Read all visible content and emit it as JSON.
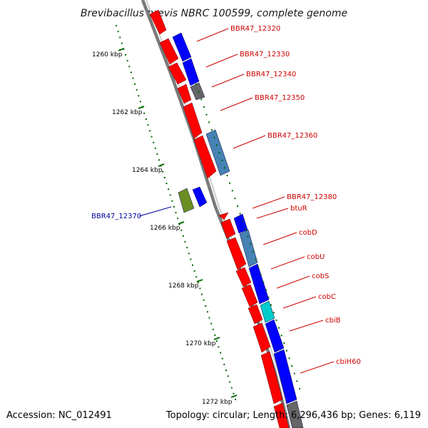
{
  "header": {
    "title": "Brevibacillus brevis NBRC 100599, complete genome"
  },
  "footer": {
    "accession": "Accession: NC_012491",
    "summary": "Topology: circular; Length: 6,296,436 bp; Genes: 6,119"
  },
  "ruler": {
    "ticks": [
      {
        "label": "1260 kbp"
      },
      {
        "label": "1262 kbp"
      },
      {
        "label": "1264 kbp"
      },
      {
        "label": "1266 kbp"
      },
      {
        "label": "1268 kbp"
      },
      {
        "label": "1270 kbp"
      },
      {
        "label": "1272 kbp"
      }
    ]
  },
  "gene_labels": [
    {
      "text": "BBR47_12320",
      "color": "#cc0000"
    },
    {
      "text": "BBR47_12330",
      "color": "#cc0000"
    },
    {
      "text": "BBR47_12340",
      "color": "#cc0000"
    },
    {
      "text": "BBR47_12350",
      "color": "#cc0000"
    },
    {
      "text": "BBR47_12360",
      "color": "#cc0000"
    },
    {
      "text": "BBR47_12380",
      "color": "#cc0000"
    },
    {
      "text": "btuR",
      "color": "#cc0000"
    },
    {
      "text": "cobD",
      "color": "#cc0000"
    },
    {
      "text": "cobU",
      "color": "#cc0000"
    },
    {
      "text": "cobS",
      "color": "#cc0000"
    },
    {
      "text": "cobC",
      "color": "#cc0000"
    },
    {
      "text": "cbiB",
      "color": "#cc0000"
    },
    {
      "text": "cbiH60",
      "color": "#cc0000"
    },
    {
      "text": "BBR47_12370",
      "color": "#000099"
    }
  ],
  "colors": {
    "cds": "#ff0000",
    "blue": "#0000ff",
    "steel": "#4682b4",
    "gray": "#666666",
    "cyan": "#00cccc",
    "olive": "#6b8e23",
    "backbone": "#888888",
    "ruler": "#006600"
  }
}
